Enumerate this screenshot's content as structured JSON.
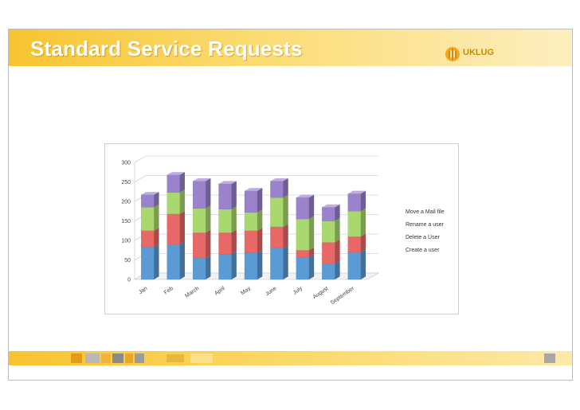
{
  "slide": {
    "title": "Standard Service Requests",
    "logo_text": "UKLUG"
  },
  "colors": {
    "title_bar": "#f7c430",
    "create_user": "#5b9bd5",
    "delete_user": "#e86868",
    "rename_user": "#a8d86e",
    "move_mail": "#9a82cc"
  },
  "chart_data": {
    "type": "bar",
    "stacked": true,
    "three_d": true,
    "categories": [
      "Jan",
      "Feb",
      "March",
      "April",
      "May",
      "June",
      "July",
      "August",
      "September"
    ],
    "series": [
      {
        "name": "Create a user",
        "values": [
          83,
          90,
          55,
          65,
          68,
          80,
          57,
          40,
          70
        ]
      },
      {
        "name": "Delete a User",
        "values": [
          42,
          78,
          65,
          55,
          57,
          55,
          18,
          55,
          40
        ]
      },
      {
        "name": "Rename a user",
        "values": [
          60,
          55,
          62,
          60,
          47,
          75,
          80,
          55,
          65
        ]
      },
      {
        "name": "Move a Mail file",
        "values": [
          32,
          45,
          70,
          65,
          55,
          42,
          55,
          35,
          45
        ]
      }
    ],
    "y_ticks": [
      "0",
      "50",
      "100",
      "150",
      "200",
      "250",
      "300"
    ],
    "ylim": [
      0,
      300
    ],
    "grid": true,
    "legend_position": "right",
    "legend_order": [
      "Move a Mail file",
      "Rename a user",
      "Delete a User",
      "Create a user"
    ]
  }
}
